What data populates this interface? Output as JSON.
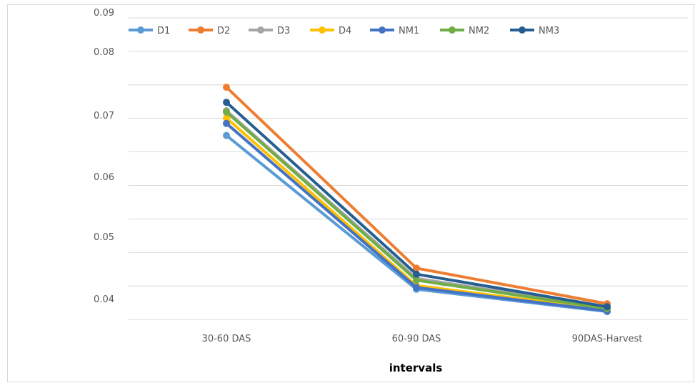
{
  "chart_data": {
    "type": "line",
    "title": "",
    "xlabel": "intervals",
    "ylabel": "",
    "categories": [
      "30-60 DAS",
      "60-90 DAS",
      "90DAS-Harvest"
    ],
    "y_tick_labels": [
      "0.09",
      "0.08",
      "0.07",
      "0.06",
      "0.05",
      "0.04"
    ],
    "ylim": [
      0.04,
      0.09
    ],
    "grid": true,
    "legend_position": "top-left",
    "series": [
      {
        "name": "D1",
        "color": "#5B9BD5",
        "values": [
          0.0705,
          0.045,
          0.0413
        ]
      },
      {
        "name": "D2",
        "color": "#ED7D31",
        "values": [
          0.0785,
          0.0485,
          0.0426
        ]
      },
      {
        "name": "D3",
        "color": "#A5A5A5",
        "values": [
          0.0746,
          0.0468,
          0.0419
        ]
      },
      {
        "name": "D4",
        "color": "#FFC000",
        "values": [
          0.0734,
          0.0456,
          0.0416
        ]
      },
      {
        "name": "NM1",
        "color": "#4472C4",
        "values": [
          0.0725,
          0.0453,
          0.0414
        ]
      },
      {
        "name": "NM2",
        "color": "#70AD47",
        "values": [
          0.0744,
          0.0465,
          0.0418
        ]
      },
      {
        "name": "NM3",
        "color": "#255E91",
        "values": [
          0.076,
          0.0475,
          0.0421
        ]
      }
    ]
  }
}
